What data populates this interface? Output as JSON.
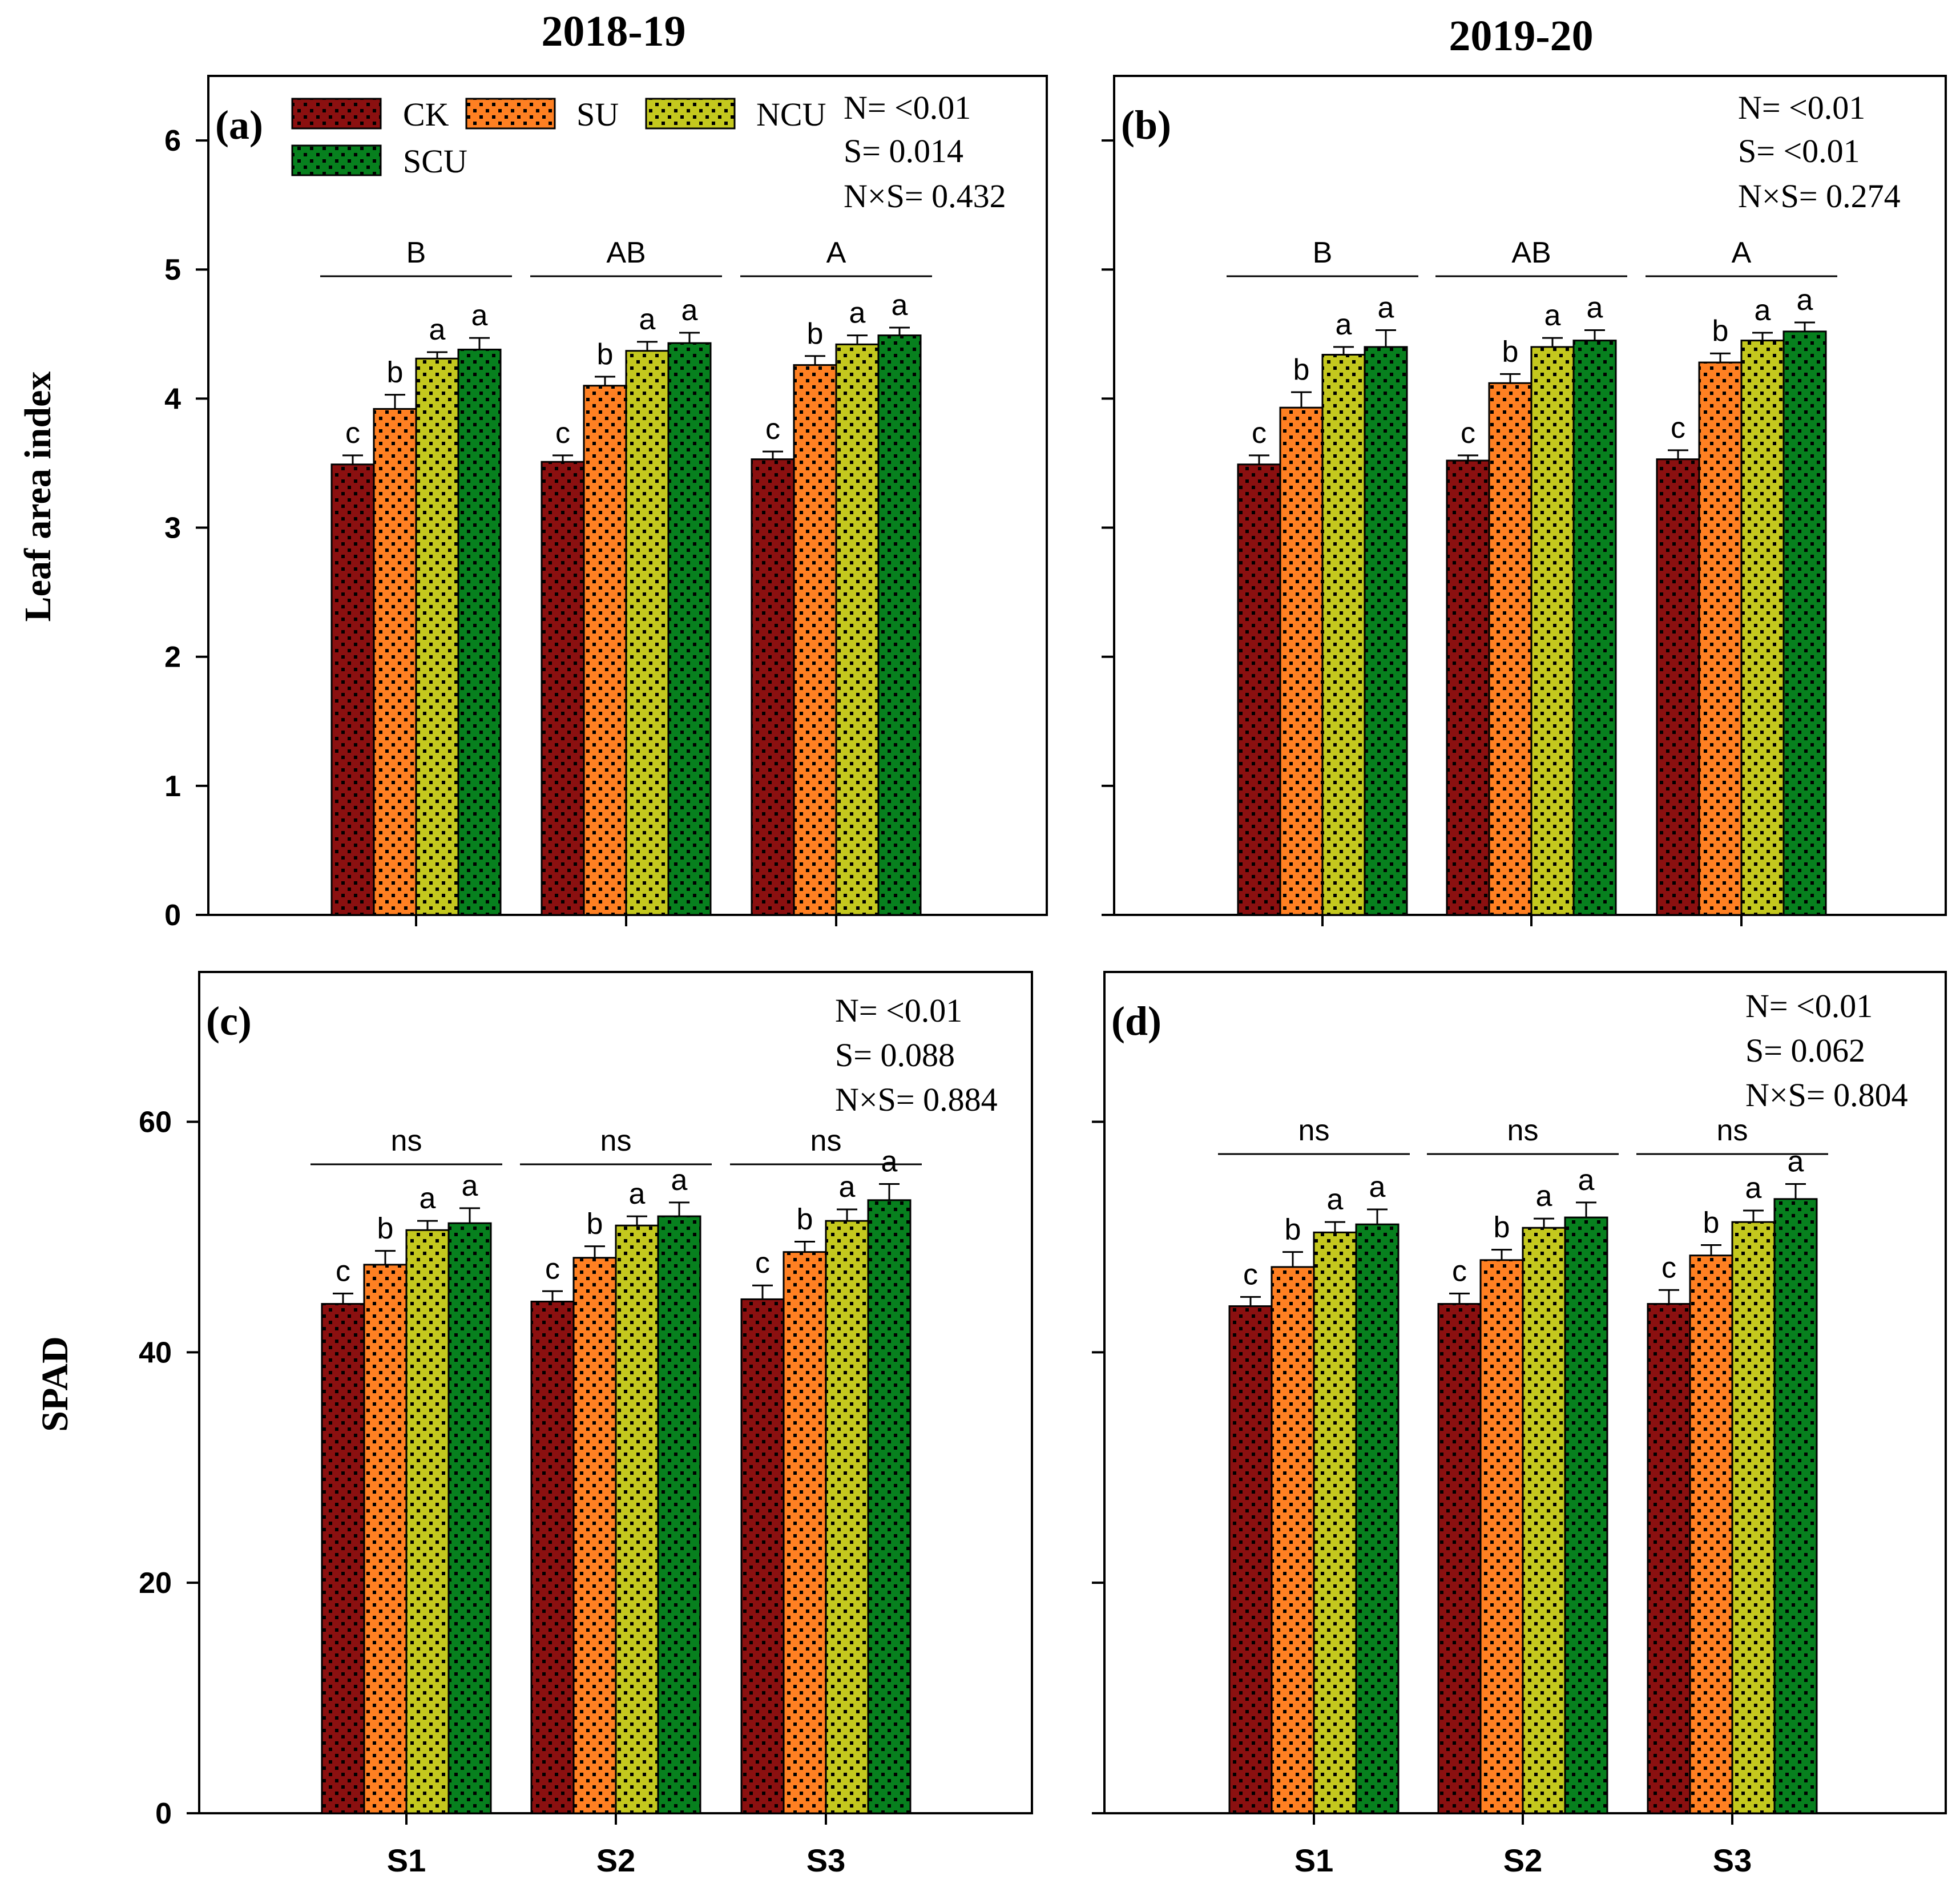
{
  "figure": {
    "col_titles": [
      "2018-19",
      "2019-20"
    ],
    "row_ylabels": [
      "Leaf area index",
      "SPAD"
    ],
    "x_tick_labels": [
      "S1",
      "S2",
      "S3"
    ]
  },
  "legend": {
    "items": [
      {
        "label": "CK",
        "color": "#8b1010"
      },
      {
        "label": "SU",
        "color": "#ff8022"
      },
      {
        "label": "NCU",
        "color": "#c4c81e"
      },
      {
        "label": "SCU",
        "color": "#07801e"
      }
    ]
  },
  "chart_data": [
    {
      "type": "bar",
      "panel_label": "(a)",
      "title": "2018-19",
      "ylabel": "Leaf area index",
      "xlabel": "",
      "ylim": [
        0,
        6.5
      ],
      "yticks": [
        0,
        1,
        2,
        3,
        4,
        5,
        6
      ],
      "categories": [
        "S1",
        "S2",
        "S3"
      ],
      "show_legend": true,
      "series": [
        {
          "name": "CK",
          "values": [
            3.49,
            3.51,
            3.53
          ],
          "errors": [
            0.07,
            0.05,
            0.06
          ],
          "letters": [
            "c",
            "c",
            "c"
          ]
        },
        {
          "name": "SU",
          "values": [
            3.92,
            4.1,
            4.26
          ],
          "errors": [
            0.11,
            0.07,
            0.07
          ],
          "letters": [
            "b",
            "b",
            "b"
          ]
        },
        {
          "name": "NCU",
          "values": [
            4.31,
            4.37,
            4.42
          ],
          "errors": [
            0.05,
            0.07,
            0.07
          ],
          "letters": [
            "a",
            "a",
            "a"
          ]
        },
        {
          "name": "SCU",
          "values": [
            4.38,
            4.43,
            4.49
          ],
          "errors": [
            0.09,
            0.08,
            0.06
          ],
          "letters": [
            "a",
            "a",
            "a"
          ]
        }
      ],
      "group_letters": [
        "B",
        "AB",
        "A"
      ],
      "stats": [
        "N= <0.01",
        "S= 0.014",
        "N×S= 0.432"
      ]
    },
    {
      "type": "bar",
      "panel_label": "(b)",
      "title": "2019-20",
      "ylabel": "",
      "xlabel": "",
      "ylim": [
        0,
        6.5
      ],
      "yticks": [
        0,
        1,
        2,
        3,
        4,
        5,
        6
      ],
      "categories": [
        "S1",
        "S2",
        "S3"
      ],
      "show_legend": false,
      "series": [
        {
          "name": "CK",
          "values": [
            3.49,
            3.52,
            3.53
          ],
          "errors": [
            0.07,
            0.04,
            0.07
          ],
          "letters": [
            "c",
            "c",
            "c"
          ]
        },
        {
          "name": "SU",
          "values": [
            3.93,
            4.12,
            4.28
          ],
          "errors": [
            0.12,
            0.07,
            0.07
          ],
          "letters": [
            "b",
            "b",
            "b"
          ]
        },
        {
          "name": "NCU",
          "values": [
            4.34,
            4.4,
            4.45
          ],
          "errors": [
            0.06,
            0.07,
            0.06
          ],
          "letters": [
            "a",
            "a",
            "a"
          ]
        },
        {
          "name": "SCU",
          "values": [
            4.4,
            4.45,
            4.52
          ],
          "errors": [
            0.13,
            0.08,
            0.07
          ],
          "letters": [
            "a",
            "a",
            "a"
          ]
        }
      ],
      "group_letters": [
        "B",
        "AB",
        "A"
      ],
      "stats": [
        "N= <0.01",
        "S= <0.01",
        "N×S= 0.274"
      ]
    },
    {
      "type": "bar",
      "panel_label": "(c)",
      "title": "",
      "ylabel": "SPAD",
      "xlabel": "",
      "ylim": [
        0,
        73
      ],
      "yticks": [
        0,
        20,
        40,
        60
      ],
      "categories": [
        "S1",
        "S2",
        "S3"
      ],
      "show_legend": false,
      "series": [
        {
          "name": "CK",
          "values": [
            44.2,
            44.4,
            44.6
          ],
          "errors": [
            0.9,
            0.9,
            1.2
          ],
          "letters": [
            "c",
            "c",
            "c"
          ]
        },
        {
          "name": "SU",
          "values": [
            47.6,
            48.2,
            48.7
          ],
          "errors": [
            1.2,
            1.0,
            0.9
          ],
          "letters": [
            "b",
            "b",
            "b"
          ]
        },
        {
          "name": "NCU",
          "values": [
            50.6,
            51.0,
            51.4
          ],
          "errors": [
            0.8,
            0.8,
            1.0
          ],
          "letters": [
            "a",
            "a",
            "a"
          ]
        },
        {
          "name": "SCU",
          "values": [
            51.2,
            51.8,
            53.2
          ],
          "errors": [
            1.3,
            1.2,
            1.4
          ],
          "letters": [
            "a",
            "a",
            "a"
          ]
        }
      ],
      "group_letters": [
        "ns",
        "ns",
        "ns"
      ],
      "stats": [
        "N= <0.01",
        "S= 0.088",
        "N×S= 0.884"
      ]
    },
    {
      "type": "bar",
      "panel_label": "(d)",
      "title": "",
      "ylabel": "",
      "xlabel": "",
      "ylim": [
        0,
        73
      ],
      "yticks": [
        0,
        20,
        40,
        60
      ],
      "categories": [
        "S1",
        "S2",
        "S3"
      ],
      "show_legend": false,
      "series": [
        {
          "name": "CK",
          "values": [
            44.0,
            44.2,
            44.2
          ],
          "errors": [
            0.8,
            0.9,
            1.2
          ],
          "letters": [
            "c",
            "c",
            "c"
          ]
        },
        {
          "name": "SU",
          "values": [
            47.4,
            48.0,
            48.4
          ],
          "errors": [
            1.3,
            0.9,
            0.9
          ],
          "letters": [
            "b",
            "b",
            "b"
          ]
        },
        {
          "name": "NCU",
          "values": [
            50.4,
            50.8,
            51.3
          ],
          "errors": [
            0.9,
            0.8,
            1.0
          ],
          "letters": [
            "a",
            "a",
            "a"
          ]
        },
        {
          "name": "SCU",
          "values": [
            51.1,
            51.7,
            53.3
          ],
          "errors": [
            1.3,
            1.3,
            1.3
          ],
          "letters": [
            "a",
            "a",
            "a"
          ]
        }
      ],
      "group_letters": [
        "ns",
        "ns",
        "ns"
      ],
      "stats": [
        "N= <0.01",
        "S= 0.062",
        "N×S= 0.804"
      ]
    }
  ]
}
